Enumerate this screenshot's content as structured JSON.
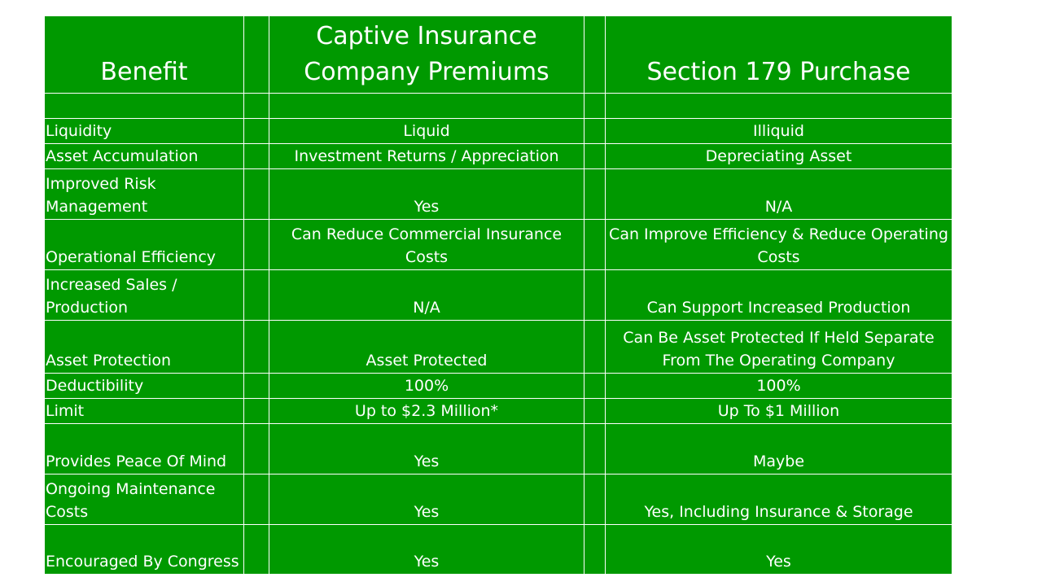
{
  "table": {
    "header": {
      "benefit": "Benefit",
      "captive": "Captive Insurance Company Premiums",
      "section179": "Section 179 Purchase"
    },
    "rows": [
      {
        "benefit": "Liquidity",
        "captive": "Liquid",
        "section179": "Illiquid"
      },
      {
        "benefit": "Asset Accumulation",
        "captive": "Investment Returns / Appreciation",
        "section179": "Depreciating Asset"
      },
      {
        "benefit": "Improved Risk Management",
        "captive": "Yes",
        "section179": "N/A"
      },
      {
        "benefit": "Operational Efficiency",
        "captive": "Can Reduce Commercial Insurance Costs",
        "section179": "Can Improve Efficiency & Reduce Operating Costs"
      },
      {
        "benefit": "Increased Sales / Production",
        "captive": "N/A",
        "section179": "Can Support Increased Production"
      },
      {
        "benefit": "Asset Protection",
        "captive": "Asset Protected",
        "section179": "Can Be Asset Protected If Held Separate From The Operating Company"
      },
      {
        "benefit": "Deductibility",
        "captive": "100%",
        "section179": "100%"
      },
      {
        "benefit": "Limit",
        "captive": "Up to $2.3 Million*",
        "section179": "Up To $1 Million"
      },
      {
        "benefit": "Provides Peace Of Mind",
        "captive": "Yes",
        "section179": "Maybe"
      },
      {
        "benefit": "Ongoing Maintenance Costs",
        "captive": "Yes",
        "section179": "Yes, Including Insurance & Storage"
      },
      {
        "benefit": "Encouraged By Congress",
        "captive": "Yes",
        "section179": "Yes"
      }
    ]
  },
  "colors": {
    "background": "#009900",
    "text": "#ffffff",
    "border": "#ffffff"
  }
}
